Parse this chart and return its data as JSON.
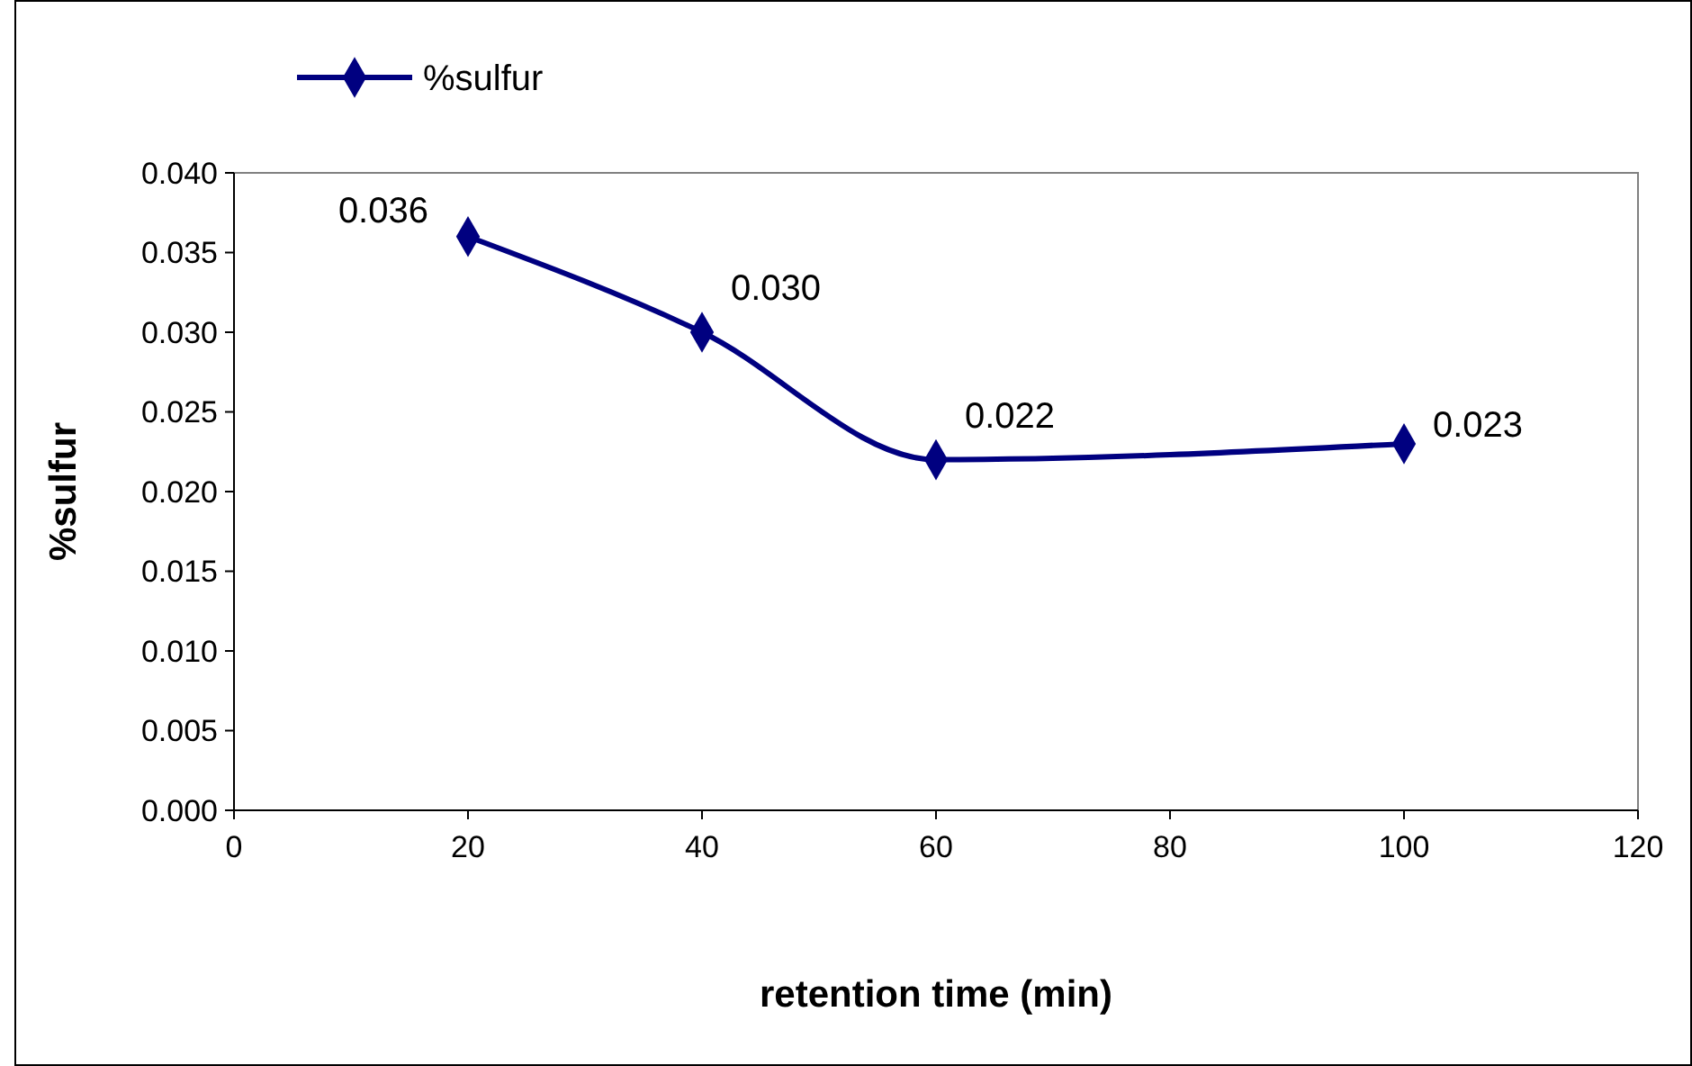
{
  "chart_data": {
    "type": "line",
    "xlabel": "retention time (min)",
    "ylabel": "%sulfur",
    "x": [
      20,
      40,
      60,
      100
    ],
    "series": [
      {
        "name": "%sulfur",
        "color": "#000080",
        "values": [
          0.036,
          0.03,
          0.022,
          0.023
        ],
        "value_labels": [
          "0.036",
          "0.030",
          "0.022",
          "0.023"
        ]
      }
    ],
    "xlim": [
      0,
      120
    ],
    "xticks": [
      0,
      20,
      40,
      60,
      80,
      100,
      120
    ],
    "ylim": [
      0,
      0.04
    ],
    "yticks": [
      {
        "value": 0,
        "label": "0.000"
      },
      {
        "value": 0.005,
        "label": "0.005"
      },
      {
        "value": 0.01,
        "label": "0.010"
      },
      {
        "value": 0.015,
        "label": "0.015"
      },
      {
        "value": 0.02,
        "label": "0.020"
      },
      {
        "value": 0.025,
        "label": "0.025"
      },
      {
        "value": 0.03,
        "label": "0.030"
      },
      {
        "value": 0.035,
        "label": "0.035"
      },
      {
        "value": 0.04,
        "label": "0.040"
      }
    ],
    "legend": "top left",
    "marker": "diamond",
    "line_style": "solid",
    "grid": false
  }
}
